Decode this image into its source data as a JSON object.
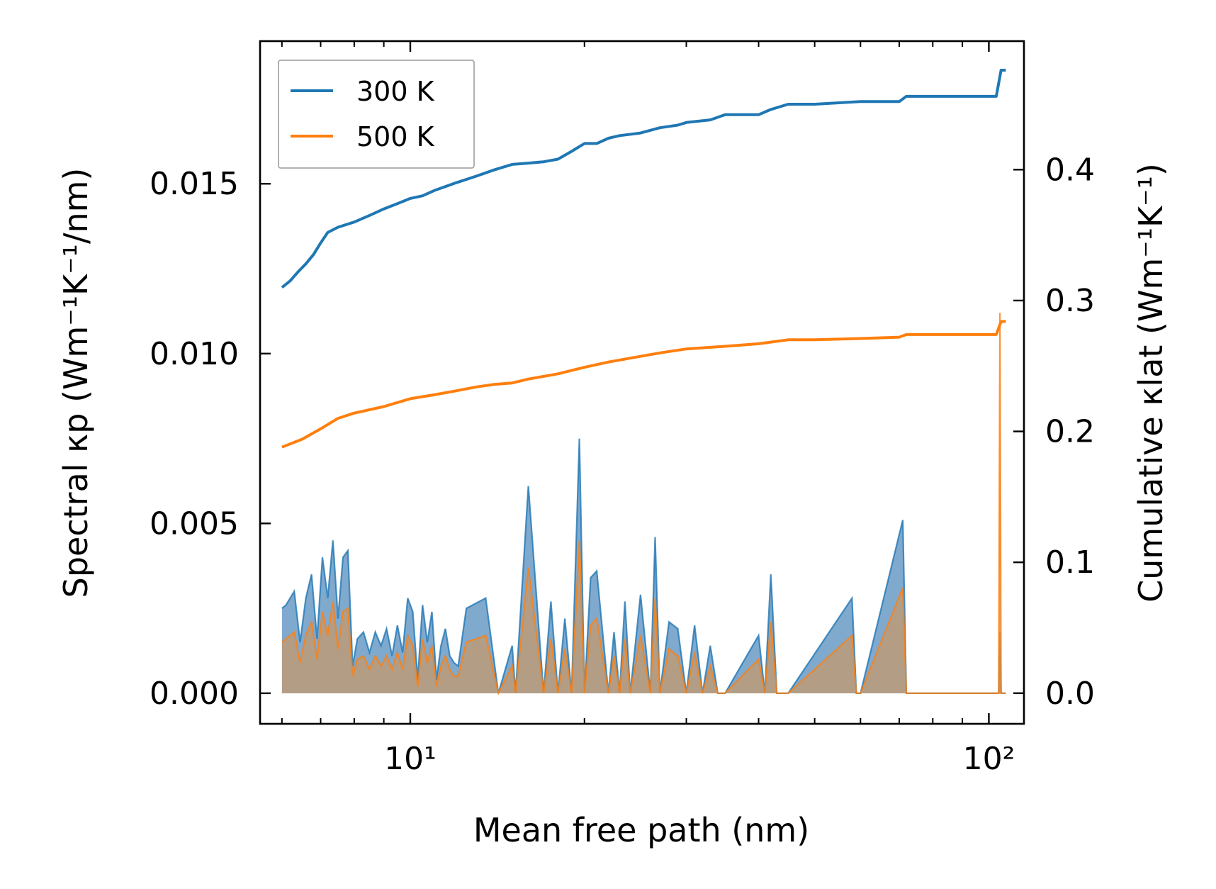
{
  "chart_data": {
    "type": "line",
    "xlabel": "Mean free path (nm)",
    "ylabel_left": "Spectral κp (Wm⁻¹K⁻¹/nm)",
    "ylabel_right": "Cumulative κlat (Wm⁻¹K⁻¹)",
    "xscale": "log",
    "xlim": [
      5.5,
      115
    ],
    "ylim_left": [
      -0.0009,
      0.0192
    ],
    "ylim_right": [
      -0.0234,
      0.4982
    ],
    "x_tick_labels": [
      "10¹",
      "10²"
    ],
    "x_tick_values": [
      10,
      100
    ],
    "y_left_ticks": [
      0.0,
      0.005,
      0.01,
      0.015
    ],
    "y_left_tick_labels": [
      "0.000",
      "0.005",
      "0.010",
      "0.015"
    ],
    "y_right_ticks": [
      0.0,
      0.1,
      0.2,
      0.3,
      0.4
    ],
    "y_right_tick_labels": [
      "0.0",
      "0.1",
      "0.2",
      "0.3",
      "0.4"
    ],
    "legend": {
      "position": "upper-left",
      "entries": [
        "300 K",
        "500 K"
      ]
    },
    "colors": {
      "300K": "#1f77b4",
      "500K": "#ff7f0e",
      "fill_300K": "#2c6fae",
      "fill_500K": "#c49a6c"
    },
    "series_cumulative": [
      {
        "name": "300 K",
        "axis": "right",
        "x": [
          6,
          6.2,
          6.4,
          6.6,
          6.8,
          7,
          7.2,
          7.5,
          8,
          8.5,
          9,
          9.5,
          10,
          10.5,
          11,
          12,
          13,
          14,
          15,
          16,
          17,
          18,
          19,
          20,
          21,
          22,
          23,
          25,
          27,
          29,
          30,
          33,
          35,
          40,
          42,
          45,
          50,
          60,
          70,
          72,
          103,
          105,
          107
        ],
        "y": [
          0.31,
          0.315,
          0.322,
          0.328,
          0.335,
          0.344,
          0.352,
          0.356,
          0.36,
          0.365,
          0.37,
          0.374,
          0.378,
          0.38,
          0.384,
          0.39,
          0.395,
          0.4,
          0.404,
          0.405,
          0.406,
          0.408,
          0.414,
          0.42,
          0.42,
          0.424,
          0.426,
          0.428,
          0.432,
          0.434,
          0.436,
          0.438,
          0.442,
          0.442,
          0.446,
          0.45,
          0.45,
          0.452,
          0.452,
          0.456,
          0.456,
          0.476,
          0.476
        ]
      },
      {
        "name": "500 K",
        "axis": "right",
        "x": [
          6,
          6.5,
          7,
          7.5,
          8,
          9,
          10,
          11,
          12,
          13,
          14,
          15,
          16,
          18,
          20,
          22,
          24,
          27,
          30,
          35,
          40,
          45,
          50,
          60,
          70,
          72,
          103,
          105,
          107
        ],
        "y": [
          0.188,
          0.194,
          0.202,
          0.21,
          0.214,
          0.219,
          0.225,
          0.228,
          0.231,
          0.234,
          0.236,
          0.237,
          0.24,
          0.244,
          0.249,
          0.253,
          0.256,
          0.26,
          0.263,
          0.265,
          0.267,
          0.27,
          0.27,
          0.271,
          0.272,
          0.274,
          0.274,
          0.284,
          0.284
        ]
      }
    ],
    "series_spectral": [
      {
        "name": "300 K spectral",
        "axis": "left",
        "x": [
          6,
          6.1,
          6.3,
          6.45,
          6.6,
          6.75,
          6.9,
          7.05,
          7.2,
          7.35,
          7.5,
          7.65,
          7.8,
          7.95,
          8.1,
          8.3,
          8.5,
          8.7,
          8.9,
          9.1,
          9.3,
          9.5,
          9.7,
          9.9,
          10.1,
          10.3,
          10.5,
          10.7,
          10.9,
          11.1,
          11.3,
          11.5,
          11.7,
          11.9,
          12.1,
          12.5,
          13.5,
          14.2,
          15,
          15.2,
          16,
          17,
          17.5,
          18,
          18.5,
          19,
          19.6,
          20,
          20.5,
          21,
          22,
          22.5,
          23,
          23.5,
          24,
          25,
          26,
          26.5,
          27,
          28,
          29,
          30,
          31,
          32,
          33,
          34,
          35,
          40,
          41,
          42,
          43,
          45,
          58,
          59,
          60,
          71,
          72,
          73,
          104,
          104.5,
          105,
          106,
          107
        ],
        "y": [
          0.0025,
          0.0026,
          0.003,
          0.0015,
          0.0028,
          0.0035,
          0.0016,
          0.004,
          0.0028,
          0.0045,
          0.0022,
          0.004,
          0.0042,
          0.0008,
          0.0016,
          0.0018,
          0.0012,
          0.0018,
          0.0014,
          0.0019,
          0.0011,
          0.002,
          0.0012,
          0.0028,
          0.0024,
          0.0004,
          0.0026,
          0.0015,
          0.0024,
          0.0004,
          0.0014,
          0.0019,
          0.0011,
          0.0009,
          0.0008,
          0.0025,
          0.0028,
          0.0,
          0.0014,
          0.0,
          0.0061,
          0.0,
          0.0027,
          0.0,
          0.0022,
          0.0,
          0.0075,
          0.0,
          0.0034,
          0.0036,
          0.0,
          0.0018,
          0.0,
          0.0027,
          0.0,
          0.0029,
          0.0,
          0.0046,
          0.0,
          0.0021,
          0.0019,
          0.0,
          0.002,
          0.0,
          0.0014,
          0.0,
          0.0,
          0.0017,
          0.0,
          0.0035,
          0.0,
          0.0,
          0.0028,
          0.0,
          0.0,
          0.0051,
          0.0,
          0.0,
          0.0,
          0.0018,
          0.0,
          0.0,
          0.0
        ]
      },
      {
        "name": "500 K spectral",
        "axis": "left",
        "x": [
          6,
          6.1,
          6.3,
          6.45,
          6.6,
          6.75,
          6.9,
          7.05,
          7.2,
          7.35,
          7.5,
          7.65,
          7.8,
          7.95,
          8.1,
          8.3,
          8.5,
          8.7,
          8.9,
          9.1,
          9.3,
          9.5,
          9.7,
          9.9,
          10.1,
          10.3,
          10.5,
          10.7,
          10.9,
          11.1,
          11.3,
          11.5,
          11.7,
          11.9,
          12.1,
          12.5,
          13.5,
          14.2,
          15,
          15.2,
          16,
          17,
          17.5,
          18,
          18.5,
          19,
          19.6,
          20,
          20.5,
          21,
          22,
          22.5,
          23,
          23.5,
          24,
          25,
          26,
          26.5,
          27,
          28,
          29,
          30,
          31,
          32,
          33,
          34,
          35,
          40,
          41,
          42,
          43,
          45,
          58,
          59,
          60,
          71,
          72,
          73,
          104,
          104.5,
          105,
          106,
          107
        ],
        "y": [
          0.0015,
          0.0016,
          0.0018,
          0.0009,
          0.0017,
          0.0021,
          0.001,
          0.0024,
          0.0017,
          0.0027,
          0.0013,
          0.0024,
          0.0025,
          0.0005,
          0.001,
          0.0011,
          0.0007,
          0.0011,
          0.0008,
          0.0011,
          0.0007,
          0.0012,
          0.0007,
          0.0017,
          0.0014,
          0.0002,
          0.0016,
          0.0009,
          0.0014,
          0.0002,
          0.0008,
          0.0011,
          0.0007,
          0.0005,
          0.0005,
          0.0015,
          0.0017,
          0.0,
          0.0008,
          0.0,
          0.0037,
          0.0,
          0.0016,
          0.0,
          0.0013,
          0.0,
          0.0045,
          0.0,
          0.002,
          0.0022,
          0.0,
          0.0011,
          0.0,
          0.0016,
          0.0,
          0.0017,
          0.0,
          0.0028,
          0.0,
          0.0013,
          0.0011,
          0.0,
          0.0012,
          0.0,
          0.0008,
          0.0,
          0.0,
          0.001,
          0.0,
          0.0021,
          0.0,
          0.0,
          0.0017,
          0.0,
          0.0,
          0.0031,
          0.0,
          0.0,
          0.0,
          0.0112,
          0.0,
          0.0,
          0.0
        ]
      }
    ]
  }
}
